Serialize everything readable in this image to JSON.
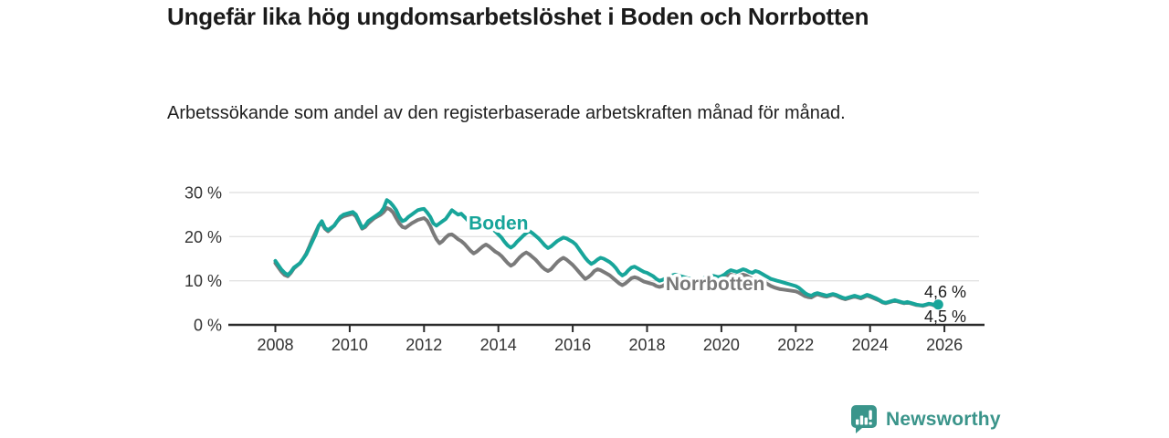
{
  "chart_data": {
    "type": "line",
    "title": "Ungefär lika hög ungdomsarbetslöshet i Boden och Norrbotten",
    "subtitle": "Arbetssökande som andel av den registerbaserade arbetskraften månad för månad.",
    "x_start": 2008.0,
    "x_step": 0.0833333,
    "ylim": [
      0,
      30
    ],
    "yticks": [
      {
        "value": 0,
        "label": "0 %"
      },
      {
        "value": 10,
        "label": "10 %"
      },
      {
        "value": 20,
        "label": "20 %"
      },
      {
        "value": 30,
        "label": "30 %"
      }
    ],
    "xticks": [
      {
        "value": 2008,
        "label": "2008"
      },
      {
        "value": 2010,
        "label": "2010"
      },
      {
        "value": 2012,
        "label": "2012"
      },
      {
        "value": 2014,
        "label": "2014"
      },
      {
        "value": 2016,
        "label": "2016"
      },
      {
        "value": 2018,
        "label": "2018"
      },
      {
        "value": 2020,
        "label": "2020"
      },
      {
        "value": 2022,
        "label": "2022"
      },
      {
        "value": 2024,
        "label": "2024"
      },
      {
        "value": 2026,
        "label": "2026"
      }
    ],
    "grid": "horizontal",
    "legend_position": "inline-labels",
    "series": [
      {
        "name": "Boden",
        "color": "#18A59A",
        "end_label": "4,6 %",
        "values": [
          14.5,
          13.5,
          12.5,
          11.8,
          11.3,
          12.0,
          13.0,
          13.5,
          14.0,
          15.0,
          16.0,
          17.5,
          19.0,
          20.5,
          22.5,
          23.5,
          22.0,
          21.5,
          22.0,
          22.5,
          23.5,
          24.5,
          25.0,
          25.2,
          25.4,
          25.6,
          25.0,
          23.5,
          22.0,
          22.5,
          23.5,
          24.0,
          24.5,
          25.0,
          25.5,
          26.5,
          28.3,
          27.8,
          27.0,
          26.0,
          24.5,
          23.5,
          23.8,
          24.5,
          25.0,
          25.5,
          26.0,
          26.2,
          26.3,
          25.5,
          24.5,
          23.0,
          22.5,
          23.0,
          23.5,
          24.0,
          25.0,
          26.0,
          25.5,
          25.0,
          25.2,
          24.5,
          23.8,
          23.0,
          22.3,
          21.8,
          22.2,
          22.8,
          23.2,
          22.5,
          21.8,
          21.2,
          20.5,
          19.8,
          18.8,
          18.0,
          17.5,
          18.0,
          18.8,
          19.5,
          20.2,
          20.8,
          21.3,
          20.8,
          20.2,
          19.6,
          18.8,
          18.0,
          17.4,
          17.8,
          18.4,
          19.0,
          19.4,
          19.8,
          19.6,
          19.2,
          18.8,
          18.2,
          17.2,
          16.2,
          15.2,
          14.4,
          13.8,
          14.2,
          14.8,
          15.2,
          15.0,
          14.6,
          14.2,
          13.6,
          12.8,
          11.8,
          11.2,
          11.6,
          12.4,
          13.0,
          13.2,
          12.8,
          12.4,
          12.0,
          11.8,
          11.4,
          11.0,
          10.4,
          10.0,
          10.2,
          10.6,
          11.0,
          11.2,
          11.4,
          11.2,
          11.0,
          10.8,
          10.6,
          10.4,
          10.2,
          10.0,
          10.2,
          10.5,
          10.8,
          11.0,
          11.2,
          11.0,
          10.8,
          11.0,
          11.4,
          12.0,
          12.4,
          12.2,
          12.0,
          12.3,
          12.6,
          12.4,
          12.0,
          11.8,
          12.2,
          12.0,
          11.6,
          11.2,
          10.8,
          10.4,
          10.2,
          10.0,
          9.8,
          9.6,
          9.4,
          9.2,
          9.0,
          8.8,
          8.4,
          7.8,
          7.2,
          6.8,
          6.6,
          7.0,
          7.2,
          7.0,
          6.8,
          6.6,
          6.8,
          7.0,
          6.8,
          6.5,
          6.2,
          6.0,
          6.2,
          6.4,
          6.6,
          6.4,
          6.2,
          6.5,
          6.8,
          6.6,
          6.3,
          6.0,
          5.6,
          5.2,
          5.0,
          5.2,
          5.4,
          5.6,
          5.4,
          5.2,
          5.0,
          5.2,
          5.0,
          4.8,
          4.6,
          4.5,
          4.4,
          4.6,
          4.8,
          4.7,
          4.4,
          4.6
        ]
      },
      {
        "name": "Norrbotten",
        "color": "#7A7A7A",
        "end_label": "4,5 %",
        "values": [
          14.0,
          13.0,
          12.0,
          11.3,
          11.0,
          11.8,
          12.8,
          13.4,
          14.0,
          15.0,
          16.2,
          17.8,
          19.5,
          21.0,
          22.5,
          23.0,
          21.8,
          21.2,
          21.8,
          22.5,
          23.5,
          24.2,
          24.6,
          24.8,
          25.0,
          25.2,
          24.6,
          23.2,
          21.8,
          22.2,
          23.0,
          23.6,
          24.2,
          24.6,
          25.0,
          25.6,
          26.5,
          26.2,
          25.5,
          24.2,
          23.0,
          22.2,
          22.0,
          22.5,
          23.0,
          23.4,
          23.8,
          24.0,
          24.2,
          23.6,
          22.4,
          20.8,
          19.4,
          18.5,
          19.0,
          19.8,
          20.4,
          20.5,
          20.0,
          19.4,
          19.0,
          18.4,
          17.6,
          16.8,
          16.2,
          16.6,
          17.2,
          17.8,
          18.2,
          17.8,
          17.2,
          16.6,
          16.2,
          15.6,
          14.8,
          14.0,
          13.4,
          13.8,
          14.6,
          15.4,
          16.0,
          16.4,
          16.0,
          15.4,
          14.8,
          14.0,
          13.2,
          12.6,
          12.2,
          12.6,
          13.4,
          14.2,
          14.8,
          15.2,
          14.8,
          14.2,
          13.6,
          12.8,
          12.0,
          11.2,
          10.4,
          10.8,
          11.4,
          12.2,
          12.6,
          12.4,
          12.0,
          11.6,
          11.2,
          10.6,
          10.0,
          9.4,
          9.0,
          9.4,
          10.0,
          10.6,
          10.8,
          10.6,
          10.2,
          9.8,
          9.6,
          9.4,
          9.2,
          8.8,
          8.6,
          8.8,
          9.2,
          9.6,
          9.8,
          10.0,
          9.8,
          9.6,
          9.4,
          9.2,
          9.0,
          8.8,
          8.7,
          8.9,
          9.2,
          9.5,
          9.7,
          9.8,
          9.6,
          9.4,
          9.8,
          10.4,
          11.0,
          11.4,
          11.2,
          11.0,
          11.2,
          11.4,
          11.2,
          10.8,
          10.4,
          10.6,
          10.4,
          10.0,
          9.6,
          9.2,
          8.8,
          8.5,
          8.3,
          8.1,
          8.0,
          7.9,
          7.8,
          7.7,
          7.6,
          7.3,
          6.9,
          6.5,
          6.3,
          6.2,
          6.6,
          6.9,
          6.7,
          6.5,
          6.4,
          6.6,
          6.8,
          6.6,
          6.3,
          6.0,
          5.8,
          6.0,
          6.2,
          6.4,
          6.2,
          6.0,
          6.3,
          6.6,
          6.4,
          6.1,
          5.8,
          5.5,
          5.1,
          4.9,
          5.1,
          5.3,
          5.5,
          5.3,
          5.1,
          4.9,
          5.1,
          4.9,
          4.7,
          4.5,
          4.4,
          4.3,
          4.5,
          4.7,
          4.6,
          4.3,
          4.5
        ]
      }
    ],
    "series_labels": [
      {
        "text": "Boden",
        "x": 2013.2,
        "y": 21.6,
        "color": "#18A59A"
      },
      {
        "text": "Norrbotten",
        "x": 2018.5,
        "y": 7.9,
        "color": "#7A7A7A"
      }
    ]
  },
  "colors": {
    "grid": "#e3e3e3",
    "axis": "#2b2b2b",
    "tick_text": "#333333",
    "value_text": "#1a1a1a",
    "background": "#ffffff"
  },
  "branding": {
    "name": "Newsworthy",
    "icon": "bar-chart-speech-bubble-icon",
    "icon_color": "#3A958B",
    "text_color": "#3A948A"
  }
}
